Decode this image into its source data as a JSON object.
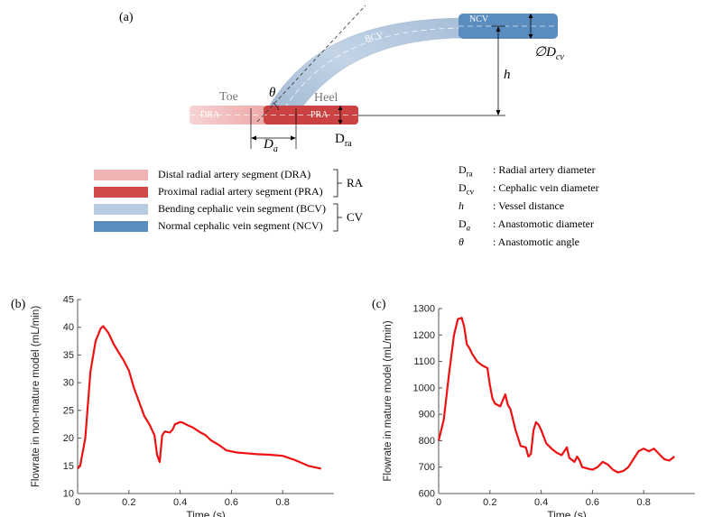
{
  "figure": {
    "panels": {
      "a": "(a)",
      "b": "(b)",
      "c": "(c)"
    },
    "colors": {
      "dra": "#f0b4b4",
      "pra": "#d04a4a",
      "bcv": "#b8cce0",
      "ncv": "#5b8cc0",
      "curve": "#ee1111"
    }
  },
  "diagram": {
    "labels": {
      "toe": "Toe",
      "heel": "Heel",
      "theta": "θ",
      "dra": "DRA",
      "pra": "PRA",
      "bcv": "BCV",
      "ncv": "NCV",
      "h": "h",
      "da": "D",
      "da_sub": "a",
      "dra_dim": "D",
      "dra_dim_sub": "ra",
      "dcv": "∅D",
      "dcv_sub": "cv"
    },
    "legend": [
      {
        "text": "Distal radial artery segment (DRA)",
        "color": "#f0b4b4"
      },
      {
        "text": "Proximal radial artery segment (PRA)",
        "color": "#d04a4a"
      },
      {
        "text": "Bending cephalic vein segment (BCV)",
        "color": "#b8cce0"
      },
      {
        "text": "Normal cephalic vein segment (NCV)",
        "color": "#5b8cc0"
      }
    ],
    "groups": {
      "ra": "RA",
      "cv": "CV"
    },
    "definitions": [
      {
        "symbol": "Dra",
        "text": ": Radial artery diameter"
      },
      {
        "symbol": "Dcv",
        "text": ": Cephalic vein diameter"
      },
      {
        "symbol": "h",
        "text": ": Vessel distance"
      },
      {
        "symbol": "Da",
        "text": ": Anastomotic diameter"
      },
      {
        "symbol": "θ",
        "text": ": Anastomotic angle"
      }
    ]
  },
  "chart_data": [
    {
      "type": "line",
      "panel": "(b)",
      "xlabel": "Time (s)",
      "ylabel": "Flowrate in non-mature model (mL/min)",
      "xlim": [
        0,
        1.0
      ],
      "ylim": [
        10,
        45
      ],
      "xticks": [
        0,
        0.2,
        0.4,
        0.6,
        0.8
      ],
      "yticks": [
        10,
        15,
        20,
        25,
        30,
        35,
        40,
        45
      ],
      "grid": false,
      "series": [
        {
          "x": [
            0,
            0.01,
            0.03,
            0.05,
            0.07,
            0.09,
            0.1,
            0.12,
            0.14,
            0.16,
            0.18,
            0.2,
            0.22,
            0.24,
            0.26,
            0.28,
            0.3,
            0.31,
            0.32,
            0.33,
            0.34,
            0.36,
            0.37,
            0.38,
            0.4,
            0.41,
            0.43,
            0.45,
            0.48,
            0.5,
            0.52,
            0.55,
            0.58,
            0.62,
            0.65,
            0.7,
            0.75,
            0.8,
            0.85,
            0.9,
            0.95
          ],
          "y": [
            14.5,
            15,
            20,
            32,
            37.5,
            39.8,
            40.2,
            39,
            37,
            35.5,
            34,
            32.2,
            29,
            26.5,
            24,
            22.5,
            20.5,
            17,
            15.7,
            20.5,
            21.2,
            21,
            21.5,
            22.5,
            22.9,
            22.8,
            22.3,
            21.9,
            21,
            20.5,
            19.6,
            18.8,
            17.8,
            17.4,
            17.3,
            17.1,
            17,
            16.8,
            16,
            15,
            14.5
          ]
        }
      ]
    },
    {
      "type": "line",
      "panel": "(c)",
      "xlabel": "Time (s)",
      "ylabel": "Flowrate in mature model (mL/min)",
      "xlim": [
        0,
        1.0
      ],
      "ylim": [
        600,
        1300
      ],
      "xticks": [
        0,
        0.2,
        0.4,
        0.6,
        0.8
      ],
      "yticks": [
        600,
        700,
        800,
        900,
        1000,
        1100,
        1200,
        1300
      ],
      "grid": false,
      "series": [
        {
          "x": [
            0,
            0.02,
            0.04,
            0.06,
            0.075,
            0.09,
            0.1,
            0.11,
            0.12,
            0.13,
            0.15,
            0.17,
            0.19,
            0.2,
            0.21,
            0.22,
            0.24,
            0.26,
            0.27,
            0.28,
            0.3,
            0.32,
            0.34,
            0.35,
            0.36,
            0.37,
            0.38,
            0.39,
            0.4,
            0.42,
            0.44,
            0.46,
            0.48,
            0.5,
            0.51,
            0.53,
            0.54,
            0.55,
            0.56,
            0.58,
            0.6,
            0.62,
            0.64,
            0.66,
            0.68,
            0.7,
            0.72,
            0.74,
            0.76,
            0.78,
            0.8,
            0.82,
            0.84,
            0.86,
            0.88,
            0.9,
            0.92
          ],
          "y": [
            800,
            880,
            1050,
            1200,
            1260,
            1265,
            1230,
            1165,
            1150,
            1130,
            1100,
            1085,
            1075,
            1010,
            960,
            940,
            930,
            975,
            935,
            920,
            840,
            780,
            775,
            740,
            750,
            840,
            870,
            860,
            840,
            790,
            770,
            755,
            745,
            775,
            735,
            720,
            740,
            725,
            700,
            695,
            690,
            700,
            720,
            710,
            690,
            680,
            685,
            700,
            730,
            760,
            770,
            760,
            770,
            750,
            730,
            725,
            740
          ]
        }
      ]
    }
  ]
}
